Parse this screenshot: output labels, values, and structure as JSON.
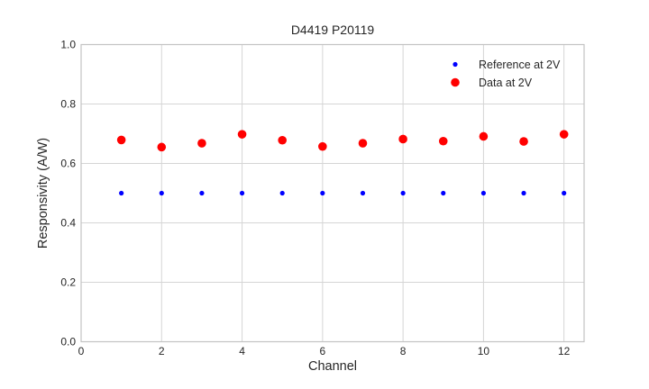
{
  "window": {
    "background": "#ffffff"
  },
  "chart_data": {
    "type": "scatter",
    "title": "D4419 P20119",
    "xlabel": "Channel",
    "ylabel": "Responsivity (A/W)",
    "xlim": [
      0,
      12.5
    ],
    "ylim": [
      0.0,
      1.0
    ],
    "xticks": [
      0,
      2,
      4,
      6,
      8,
      10,
      12
    ],
    "xticklabels": [
      "0",
      "2",
      "4",
      "6",
      "8",
      "10",
      "12"
    ],
    "yticks": [
      0.0,
      0.2,
      0.4,
      0.6,
      0.8,
      1.0
    ],
    "yticklabels": [
      "0.0",
      "0.2",
      "0.4",
      "0.6",
      "0.8",
      "1.0"
    ],
    "grid": true,
    "legend_position": "upper right",
    "x": [
      1,
      2,
      3,
      4,
      5,
      6,
      7,
      8,
      9,
      10,
      11,
      12
    ],
    "series": [
      {
        "name": "Reference at 2V",
        "color": "#0000ff",
        "marker": "circle",
        "marker_radius_px": 2.6,
        "values": [
          0.5,
          0.5,
          0.5,
          0.5,
          0.5,
          0.5,
          0.5,
          0.5,
          0.5,
          0.5,
          0.5,
          0.5
        ]
      },
      {
        "name": "Data at 2V",
        "color": "#ff0000",
        "marker": "circle",
        "marker_radius_px": 4.8,
        "values": [
          0.679,
          0.655,
          0.668,
          0.698,
          0.678,
          0.657,
          0.668,
          0.682,
          0.675,
          0.691,
          0.674,
          0.698
        ]
      }
    ],
    "colors": {
      "background": "#ffffff",
      "grid": "#d5d5d5",
      "spine": "#c3c3c3",
      "text": "#262626"
    }
  }
}
